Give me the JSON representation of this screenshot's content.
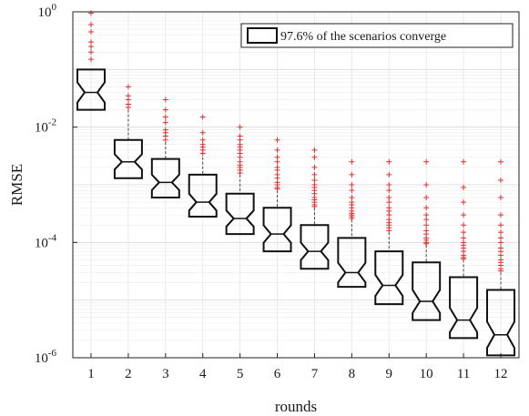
{
  "chart_data": {
    "type": "box",
    "title": "",
    "xlabel": "rounds",
    "ylabel": "RMSE",
    "yscale": "log",
    "ylim": [
      1e-06,
      1
    ],
    "categories": [
      "1",
      "2",
      "3",
      "4",
      "5",
      "6",
      "7",
      "8",
      "9",
      "10",
      "11",
      "12"
    ],
    "y_tick_labels": [
      {
        "base": "10",
        "exp": "0",
        "value": 1
      },
      {
        "base": "10",
        "exp": "-2",
        "value": 0.01
      },
      {
        "base": "10",
        "exp": "-4",
        "value": 0.0001
      },
      {
        "base": "10",
        "exp": "-6",
        "value": 1e-06
      }
    ],
    "grid": true,
    "minor_grid": true,
    "legend": {
      "text": "97.6% of the scenarios converge",
      "placement": "top-right"
    },
    "colors": {
      "box": "#111111",
      "whisker": "#444444",
      "outlier": "#e03030",
      "grid": "#d8d8d8"
    },
    "boxes": [
      {
        "q1": 0.02,
        "median": 0.04,
        "q3": 0.1,
        "whisker_low": 0.02,
        "whisker_high": 0.1,
        "notch": 0.25,
        "outliers": [
          0.15,
          0.2,
          0.25,
          0.3,
          0.45,
          0.6,
          0.95
        ]
      },
      {
        "q1": 0.0013,
        "median": 0.0025,
        "q3": 0.006,
        "whisker_low": 0.0013,
        "whisker_high": 0.02,
        "notch": 0.2,
        "outliers": [
          0.022,
          0.025,
          0.03,
          0.035,
          0.05
        ]
      },
      {
        "q1": 0.0006,
        "median": 0.0011,
        "q3": 0.0028,
        "whisker_low": 0.0006,
        "whisker_high": 0.0055,
        "notch": 0.2,
        "outliers": [
          0.006,
          0.007,
          0.008,
          0.009,
          0.012,
          0.015,
          0.02,
          0.03
        ]
      },
      {
        "q1": 0.00028,
        "median": 0.0005,
        "q3": 0.0015,
        "whisker_low": 0.00028,
        "whisker_high": 0.003,
        "notch": 0.2,
        "outliers": [
          0.0035,
          0.004,
          0.0045,
          0.005,
          0.006,
          0.008,
          0.015
        ]
      },
      {
        "q1": 0.00014,
        "median": 0.00026,
        "q3": 0.0007,
        "whisker_low": 0.00014,
        "whisker_high": 0.0015,
        "notch": 0.2,
        "outliers": [
          0.0016,
          0.0018,
          0.002,
          0.0022,
          0.0025,
          0.003,
          0.0035,
          0.004,
          0.0045,
          0.005,
          0.006,
          0.007,
          0.01
        ]
      },
      {
        "q1": 7e-05,
        "median": 0.00014,
        "q3": 0.0004,
        "whisker_low": 7e-05,
        "whisker_high": 0.0008,
        "notch": 0.2,
        "outliers": [
          0.00085,
          0.0009,
          0.001,
          0.0011,
          0.0013,
          0.0015,
          0.0018,
          0.002,
          0.0025,
          0.003,
          0.004,
          0.006
        ]
      },
      {
        "q1": 3.5e-05,
        "median": 7e-05,
        "q3": 0.0002,
        "whisker_low": 3.5e-05,
        "whisker_high": 0.0004,
        "notch": 0.2,
        "outliers": [
          0.00042,
          0.00045,
          0.0005,
          0.00055,
          0.0006,
          0.0007,
          0.0008,
          0.0009,
          0.001,
          0.0012,
          0.0015,
          0.002,
          0.003,
          0.004
        ]
      },
      {
        "q1": 1.7e-05,
        "median": 3e-05,
        "q3": 0.00012,
        "whisker_low": 1.7e-05,
        "whisker_high": 0.00025,
        "notch": 0.2,
        "outliers": [
          0.00026,
          0.00028,
          0.0003,
          0.00032,
          0.00035,
          0.0004,
          0.00045,
          0.0005,
          0.0006,
          0.0008,
          0.001,
          0.0015,
          0.0025
        ]
      },
      {
        "q1": 8.5e-06,
        "median": 1.8e-05,
        "q3": 7e-05,
        "whisker_low": 8.5e-06,
        "whisker_high": 0.00015,
        "notch": 0.2,
        "outliers": [
          0.00016,
          0.00018,
          0.0002,
          0.00022,
          0.00025,
          0.0003,
          0.00035,
          0.0004,
          0.0005,
          0.0006,
          0.0008,
          0.001,
          0.0015,
          0.0025
        ]
      },
      {
        "q1": 4.5e-06,
        "median": 9.5e-06,
        "q3": 4.5e-05,
        "whisker_low": 4.5e-06,
        "whisker_high": 9e-05,
        "notch": 0.2,
        "outliers": [
          9.5e-05,
          0.0001,
          0.00011,
          0.00012,
          0.00014,
          0.00016,
          0.0002,
          0.00025,
          0.0003,
          0.0004,
          0.0006,
          0.001,
          0.0025
        ]
      },
      {
        "q1": 2.2e-06,
        "median": 4.5e-06,
        "q3": 2.5e-05,
        "whisker_low": 2.2e-06,
        "whisker_high": 5e-05,
        "notch": 0.2,
        "outliers": [
          5.2e-05,
          5.5e-05,
          6e-05,
          7e-05,
          8e-05,
          9e-05,
          0.0001,
          0.00012,
          0.00015,
          0.0002,
          0.0003,
          0.0005,
          0.0009,
          0.0025
        ]
      },
      {
        "q1": 1.1e-06,
        "median": 2.5e-06,
        "q3": 1.5e-05,
        "whisker_low": 1.1e-06,
        "whisker_high": 3e-05,
        "notch": 0.2,
        "outliers": [
          3.2e-05,
          3.5e-05,
          4e-05,
          4.5e-05,
          5e-05,
          6e-05,
          7e-05,
          8e-05,
          0.0001,
          0.00012,
          0.00015,
          0.0002,
          0.0003,
          0.0006,
          0.0012,
          0.0025
        ]
      }
    ]
  }
}
